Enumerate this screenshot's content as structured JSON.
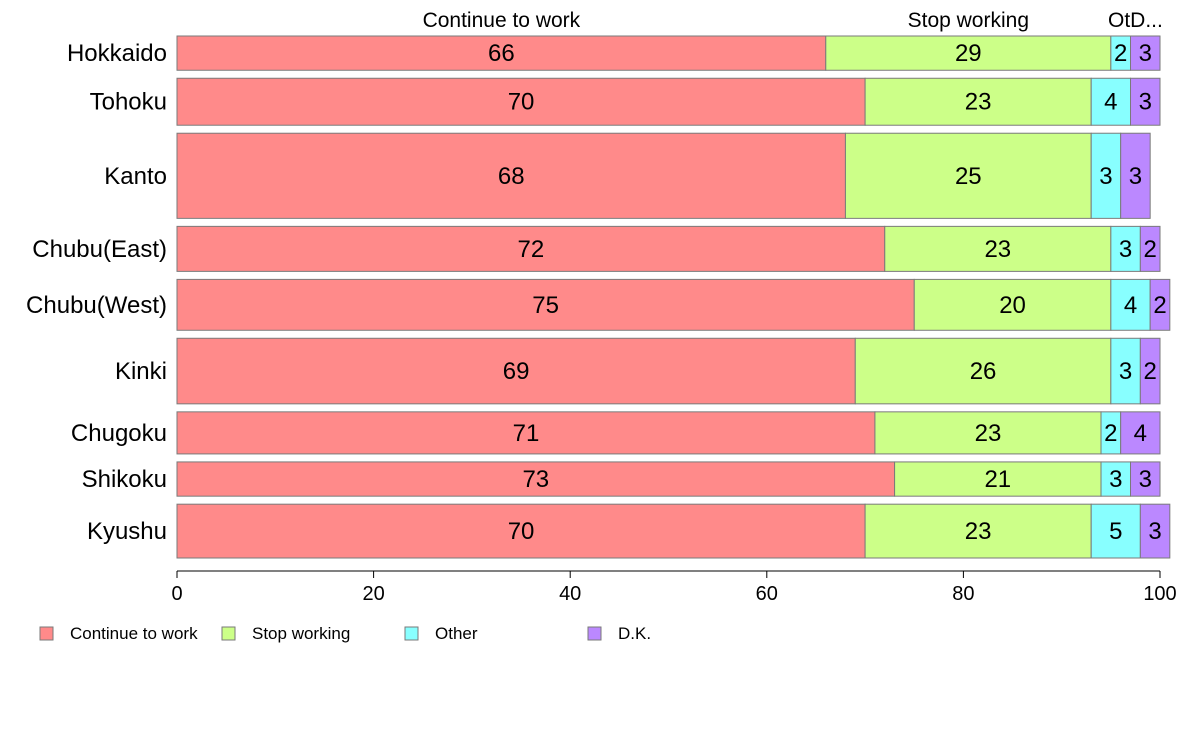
{
  "chart_data": {
    "type": "bar",
    "orientation": "horizontal",
    "stacked": true,
    "title": "",
    "xlabel": "",
    "ylabel": "",
    "xlim": [
      0,
      100
    ],
    "x_ticks": [
      0,
      20,
      40,
      60,
      80,
      100
    ],
    "grid": false,
    "legend_position": "bottom-left",
    "column_headers": [
      "Continue to work",
      "Stop working",
      "OtD..."
    ],
    "categories": [
      "Hokkaido",
      "Tohoku",
      "Kanto",
      "Chubu(East)",
      "Chubu(West)",
      "Kinki",
      "Chugoku",
      "Shikoku",
      "Kyushu"
    ],
    "series": [
      {
        "name": "Continue to work",
        "color": "#ff8a8a",
        "values": [
          66,
          70,
          68,
          72,
          75,
          69,
          71,
          73,
          70
        ]
      },
      {
        "name": "Stop working",
        "color": "#ccff88",
        "values": [
          29,
          23,
          25,
          23,
          20,
          26,
          23,
          21,
          23
        ]
      },
      {
        "name": "Other",
        "color": "#88ffff",
        "values": [
          2,
          4,
          3,
          3,
          4,
          3,
          2,
          3,
          5
        ]
      },
      {
        "name": "D.K.",
        "color": "#bb88ff",
        "values": [
          3,
          3,
          3,
          2,
          2,
          2,
          4,
          3,
          3
        ]
      }
    ],
    "bar_relative_widths": [
      0.35,
      0.48,
      0.87,
      0.46,
      0.52,
      0.67,
      0.43,
      0.35,
      0.55
    ]
  }
}
